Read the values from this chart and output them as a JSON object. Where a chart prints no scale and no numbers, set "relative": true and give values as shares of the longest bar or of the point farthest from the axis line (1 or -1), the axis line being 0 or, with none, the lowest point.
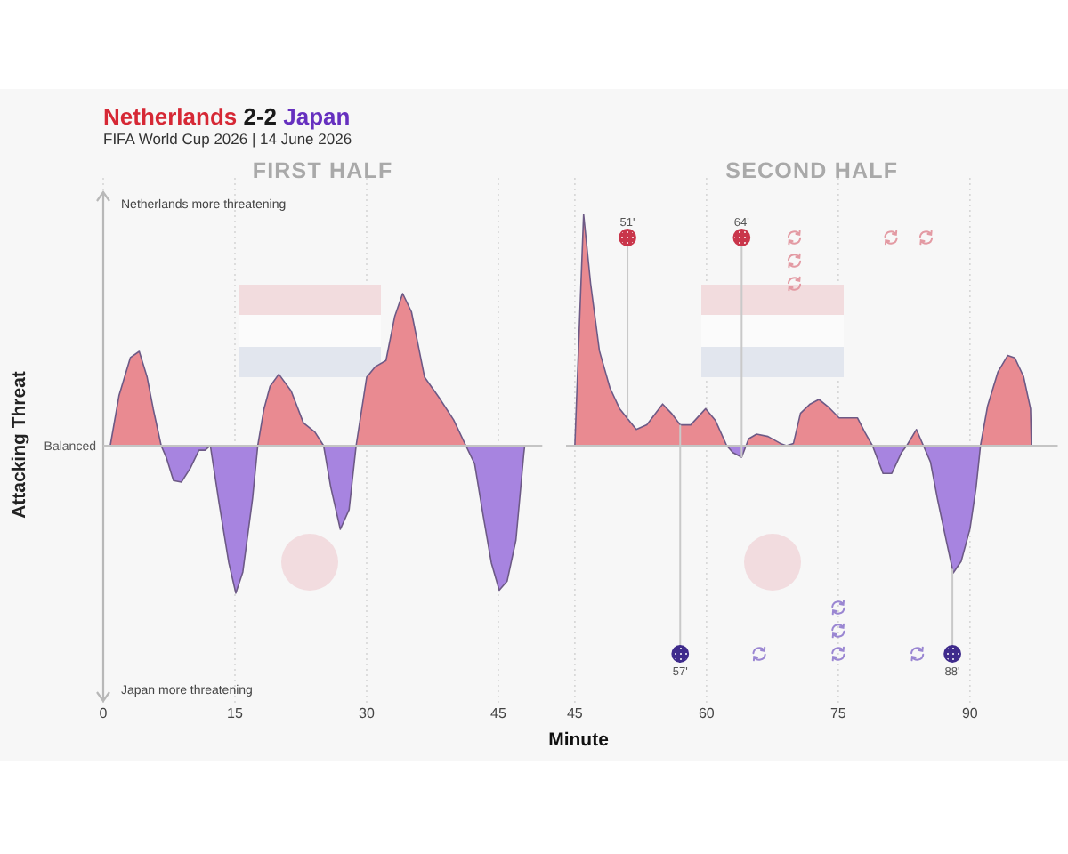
{
  "chart_data": [
    {
      "type": "area",
      "title": "Netherlands 2-2 Japan",
      "subtitle": "FIFA World Cup 2026 | 14 June 2026",
      "xlabel": "Minute",
      "ylabel": "Attacking Threat",
      "annotations": [
        "FIRST HALF",
        "Netherlands more threatening",
        "Japan more threatening",
        "Balanced"
      ],
      "relative": true,
      "xlim": [
        0,
        50
      ],
      "xticks": [
        0,
        15,
        30,
        45
      ],
      "grid": "x",
      "x": [
        0.8,
        1.8,
        3.1,
        4.1,
        5.0,
        5.7,
        6.6,
        7.2,
        8.0,
        8.9,
        9.9,
        10.9,
        11.6,
        12.2,
        13.2,
        14.3,
        15.1,
        15.9,
        17.0,
        17.6,
        18.3,
        19.0,
        20.0,
        21.4,
        22.8,
        24.1,
        25.1,
        25.9,
        27.0,
        28.0,
        28.8,
        30.0,
        31.0,
        32.2,
        33.2,
        34.1,
        35.1,
        36.6,
        38.2,
        39.9,
        41.3,
        42.3,
        43.3,
        44.2,
        45.1,
        46.0,
        47.0,
        47.9,
        48.0
      ],
      "series": [
        {
          "color": "#e98a91",
          "values": [
            0,
            0.33,
            0.58,
            0.62,
            0.45,
            0.24,
            0,
            0,
            0,
            0,
            0,
            0,
            0,
            0,
            0,
            0,
            0,
            0,
            0,
            0,
            0.24,
            0.39,
            0.47,
            0.36,
            0.15,
            0.09,
            0,
            0,
            0,
            0,
            0,
            0.45,
            0.52,
            0.56,
            0.85,
            1,
            0.88,
            0.45,
            0.32,
            0.17,
            0,
            0,
            0,
            0,
            0,
            0,
            0,
            0,
            0
          ]
        },
        {
          "color": "#a784e0",
          "values": [
            0,
            0,
            0,
            0,
            0,
            0,
            0,
            -0.08,
            -0.23,
            -0.24,
            -0.15,
            -0.03,
            -0.03,
            0,
            -0.38,
            -0.77,
            -0.97,
            -0.83,
            -0.35,
            0,
            0,
            0,
            0,
            0,
            0,
            0,
            0,
            -0.27,
            -0.55,
            -0.42,
            0,
            0,
            0,
            0,
            0,
            0,
            0,
            0,
            0,
            0,
            0,
            -0.12,
            -0.47,
            -0.77,
            -0.95,
            -0.89,
            -0.62,
            -0.05,
            0
          ]
        }
      ]
    },
    {
      "type": "area",
      "annotations": [
        "SECOND HALF"
      ],
      "relative": true,
      "xlim": [
        44,
        100
      ],
      "xticks": [
        45,
        60,
        75,
        90
      ],
      "grid": "x",
      "ref_lines": [
        {
          "axis": "x",
          "value": 51,
          "label": "51'",
          "color": "#c9c9c9"
        },
        {
          "axis": "x",
          "value": 64,
          "label": "64'",
          "color": "#c9c9c9"
        },
        {
          "axis": "x",
          "value": 57,
          "label": "57'",
          "color": "#c9c9c9"
        },
        {
          "axis": "x",
          "value": 88,
          "label": "88'",
          "color": "#c9c9c9"
        }
      ],
      "x": [
        45.0,
        46.0,
        46.8,
        47.8,
        49.0,
        50.1,
        52.0,
        53.2,
        55.0,
        56.0,
        57.0,
        58.2,
        59.9,
        61.0,
        62.3,
        63.0,
        64.0,
        64.5,
        64.8,
        65.7,
        67.0,
        68.4,
        69.1,
        69.9,
        70.7,
        71.8,
        72.8,
        73.8,
        75.1,
        77.2,
        78.0,
        78.9,
        80.1,
        81.1,
        82.2,
        82.8,
        83.9,
        84.7,
        85.5,
        86.3,
        87.3,
        88.1,
        89.0,
        90.0,
        90.7,
        91.2,
        92.0,
        93.2,
        94.3,
        95.1,
        96.1,
        96.9,
        97.0
      ],
      "series": [
        {
          "color": "#e98a91",
          "values": [
            0,
            1,
            0.7,
            0.41,
            0.25,
            0.16,
            0.07,
            0.09,
            0.18,
            0.14,
            0.09,
            0.09,
            0.16,
            0.11,
            0,
            0,
            0,
            0,
            0.03,
            0.05,
            0.04,
            0.01,
            0,
            0.01,
            0.14,
            0.18,
            0.2,
            0.17,
            0.12,
            0.12,
            0.06,
            0,
            0,
            0,
            0,
            0,
            0.07,
            0,
            0,
            0,
            0,
            0,
            0,
            0,
            0,
            0,
            0.17,
            0.32,
            0.39,
            0.38,
            0.3,
            0.16,
            0
          ]
        },
        {
          "color": "#a784e0",
          "values": [
            0,
            0,
            0,
            0,
            0,
            0,
            0,
            0,
            0,
            0,
            0,
            0,
            0,
            0,
            0,
            -0.03,
            -0.05,
            0,
            0,
            0,
            0,
            0,
            0,
            0,
            0,
            0,
            0,
            0,
            0,
            0,
            0,
            0,
            -0.12,
            -0.12,
            -0.03,
            0,
            0,
            0,
            -0.07,
            -0.23,
            -0.41,
            -0.55,
            -0.5,
            -0.36,
            -0.18,
            0,
            0,
            0,
            0,
            0,
            0,
            0,
            0
          ]
        },
        {
          "type": "scatter",
          "marker": "circle",
          "color": "#c9364b",
          "x": [
            51,
            64
          ],
          "values": [
            0.9,
            0.9
          ]
        },
        {
          "type": "scatter",
          "marker": "circle",
          "color": "#3f2b8c",
          "x": [
            57,
            88
          ],
          "values": [
            -0.9,
            -0.9
          ]
        },
        {
          "type": "scatter",
          "color": "#e39aa3",
          "x": [
            70,
            70,
            70,
            81,
            85
          ],
          "values": [
            0.9,
            0.8,
            0.7,
            0.9,
            0.9
          ]
        },
        {
          "type": "scatter",
          "color": "#9a86d2",
          "x": [
            66,
            75,
            75,
            75,
            84
          ],
          "values": [
            -0.9,
            -0.9,
            -0.8,
            -0.7,
            -0.9
          ]
        }
      ]
    }
  ]
}
